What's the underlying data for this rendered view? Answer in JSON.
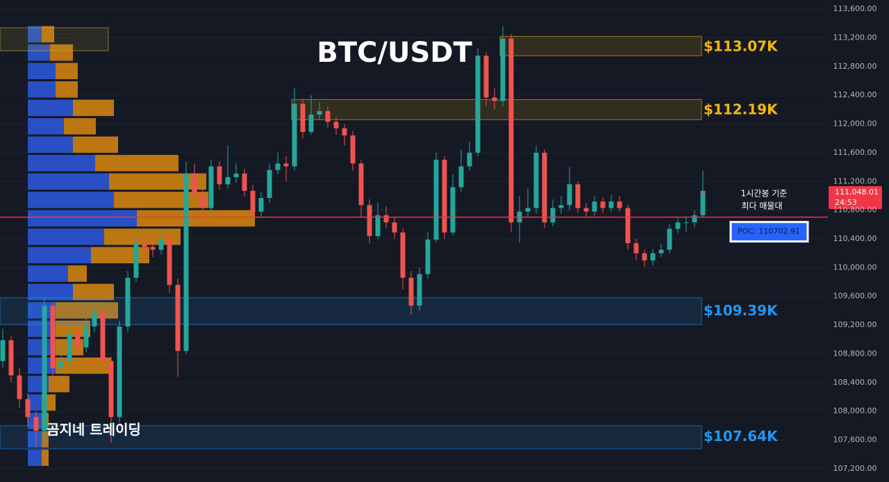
{
  "chart_data": {
    "type": "candlestick",
    "title": "BTC/USDT",
    "watermark": "곰지네 트레이딩",
    "annotation": [
      "1시간봉 기준",
      "최다 매물대"
    ],
    "ylim": [
      107016,
      113726
    ],
    "grid": true,
    "up_color": "#26a69a",
    "down_color": "#ef5350",
    "yticks": [
      {
        "value": 113600,
        "label": "113,600.00"
      },
      {
        "value": 113200,
        "label": "113,200.00"
      },
      {
        "value": 112800,
        "label": "112,800.00"
      },
      {
        "value": 112400,
        "label": "112,400.00"
      },
      {
        "value": 112000,
        "label": "112,000.00"
      },
      {
        "value": 111600,
        "label": "111,600.00"
      },
      {
        "value": 111200,
        "label": "111,200.00"
      },
      {
        "value": 110800,
        "label": "110,800.00"
      },
      {
        "value": 110400,
        "label": "110,400.00"
      },
      {
        "value": 110000,
        "label": "110,000.00"
      },
      {
        "value": 109600,
        "label": "109,600.00"
      },
      {
        "value": 109200,
        "label": "109,200.00"
      },
      {
        "value": 108800,
        "label": "108,800.00"
      },
      {
        "value": 108400,
        "label": "108,400.00"
      },
      {
        "value": 108000,
        "label": "108,000.00"
      },
      {
        "value": 107600,
        "label": "107,600.00"
      },
      {
        "value": 107200,
        "label": "107,200.00"
      }
    ],
    "open": [
      108700,
      108990,
      108500,
      108170,
      107920,
      107730,
      109470,
      108600,
      108700,
      109080,
      108890,
      109180,
      109370,
      108700,
      107920,
      109180,
      109860,
      110340,
      110290,
      110250,
      110390,
      109760,
      108840,
      111310,
      111020,
      110830,
      111410,
      111160,
      111260,
      111310,
      111070,
      110780,
      110970,
      111360,
      111450,
      111410,
      112280,
      111890,
      112130,
      112180,
      112030,
      111940,
      111840,
      111450,
      110870,
      110440,
      110730,
      110630,
      110490,
      109860,
      109470,
      109910,
      110390,
      111500,
      110490,
      111120,
      111410,
      111600,
      112950,
      112370,
      112320,
      113190,
      110630,
      110780,
      110830,
      111600,
      110630,
      110830,
      110870,
      111160,
      110830,
      110780,
      110920,
      110830,
      110920,
      110830,
      110340,
      110200,
      110100,
      110200,
      110250,
      110540,
      110630,
      110630,
      110730
    ],
    "high": [
      109150,
      109050,
      108600,
      108250,
      108000,
      109560,
      109520,
      108900,
      109200,
      109180,
      109300,
      109450,
      109420,
      108760,
      109260,
      109950,
      110450,
      110420,
      110380,
      110500,
      110450,
      109850,
      111480,
      111450,
      111100,
      111500,
      111480,
      111700,
      111450,
      111380,
      111150,
      111050,
      111450,
      111600,
      111550,
      112500,
      112350,
      112400,
      112300,
      112250,
      112100,
      112000,
      111900,
      111500,
      110950,
      110900,
      110850,
      110700,
      110550,
      109950,
      110000,
      110500,
      111600,
      111550,
      111300,
      111650,
      111750,
      113050,
      113000,
      112500,
      113360,
      113250,
      111000,
      111100,
      111700,
      111650,
      110950,
      111000,
      111400,
      111200,
      110900,
      111000,
      110980,
      111010,
      111000,
      110880,
      110400,
      110250,
      110260,
      110330,
      110600,
      110700,
      110700,
      110800,
      111350
    ],
    "low": [
      108600,
      108400,
      108050,
      107800,
      107500,
      107650,
      108500,
      108550,
      108620,
      108800,
      108820,
      109100,
      108600,
      107560,
      107850,
      109100,
      109800,
      110200,
      110150,
      110180,
      109650,
      108480,
      108800,
      110900,
      110650,
      110760,
      111080,
      111100,
      111180,
      110990,
      110700,
      110700,
      110900,
      111300,
      111200,
      111350,
      111800,
      111850,
      112050,
      111950,
      111850,
      111700,
      111350,
      110700,
      110340,
      110400,
      110550,
      110400,
      109700,
      109350,
      109400,
      109850,
      110350,
      110400,
      110450,
      111050,
      111350,
      111550,
      112250,
      112200,
      112250,
      110500,
      110350,
      110700,
      110750,
      110550,
      110580,
      110750,
      110800,
      110760,
      110700,
      110720,
      110760,
      110780,
      110780,
      110250,
      110100,
      110010,
      110030,
      110150,
      110200,
      110480,
      110500,
      110560,
      110700
    ],
    "close": [
      108990,
      108500,
      108170,
      107920,
      107730,
      109470,
      108600,
      108700,
      109080,
      108890,
      109180,
      109370,
      108700,
      107920,
      109180,
      109860,
      110340,
      110290,
      110250,
      110390,
      109760,
      108840,
      111310,
      111020,
      110830,
      111410,
      111160,
      111260,
      111310,
      111070,
      110780,
      110970,
      111360,
      111450,
      111410,
      112280,
      111890,
      112130,
      112180,
      112030,
      111940,
      111840,
      111450,
      110870,
      110440,
      110730,
      110630,
      110490,
      109860,
      109470,
      109910,
      110390,
      111500,
      110490,
      111120,
      111410,
      111600,
      112950,
      112370,
      112320,
      113190,
      110630,
      110780,
      110830,
      111600,
      110630,
      110830,
      110870,
      111160,
      110830,
      110780,
      110920,
      110830,
      110920,
      110830,
      110340,
      110200,
      110100,
      110200,
      110250,
      110540,
      110630,
      110630,
      110730,
      111070
    ],
    "zones": [
      {
        "high": 113340,
        "low": 113020,
        "start": 0,
        "end": 13,
        "color": "#c9b037"
      },
      {
        "label": "$113.07K",
        "value": 113070,
        "high": 113220,
        "low": 112950,
        "start": 60,
        "color": "#f0b90b"
      },
      {
        "label": "$112.19K",
        "value": 112190,
        "high": 112340,
        "low": 112060,
        "start": 35,
        "color": "#f0b90b"
      },
      {
        "label": "$109.39K",
        "value": 109390,
        "high": 109580,
        "low": 109210,
        "start": 0,
        "color": "#2196f3"
      },
      {
        "label": "$107.64K",
        "value": 107640,
        "high": 107800,
        "low": 107480,
        "start": 0,
        "color": "#2196f3"
      }
    ],
    "poc": {
      "value": 110702.91,
      "label": "POC: 110702.91",
      "color": "#f23645"
    },
    "last_price": {
      "value": 111048.01,
      "label": "111,048.01",
      "countdown": "24:53",
      "color": "#f23645"
    },
    "volume_profile": {
      "bins": [
        113378,
        113122,
        112865,
        112609,
        112353,
        112096,
        111840,
        111584,
        111327,
        111071,
        110815,
        110558,
        110302,
        110046,
        109789,
        109533,
        109277,
        109020,
        108764,
        108508,
        108251,
        107995,
        107739,
        107482,
        107226
      ],
      "buy": [
        20,
        32,
        40,
        40,
        65,
        52,
        65,
        97,
        117,
        124,
        157,
        110,
        91,
        58,
        65,
        40,
        40,
        40,
        40,
        30,
        20,
        20,
        20,
        20
      ],
      "sell": [
        18,
        33,
        32,
        32,
        59,
        46,
        65,
        120,
        140,
        136,
        170,
        110,
        84,
        27,
        59,
        90,
        50,
        40,
        80,
        30,
        20,
        10,
        10,
        10
      ],
      "buy_color": "#2b5be0",
      "sell_color": "#d9870f"
    }
  }
}
